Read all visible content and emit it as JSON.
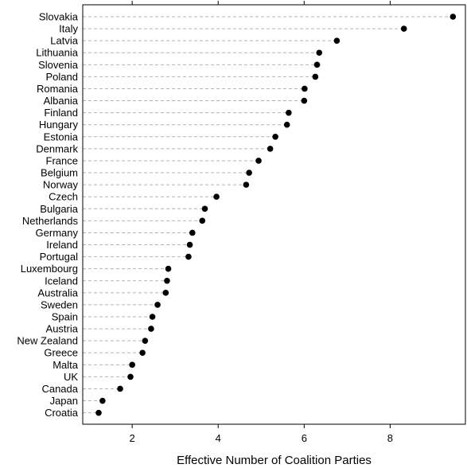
{
  "chart_data": {
    "type": "scatter",
    "subtype": "dot-plot",
    "title": "",
    "xlabel": "Effective Number of Coalition Parties",
    "ylabel": "",
    "xlim": [
      0.85,
      9.75
    ],
    "xticks": [
      2,
      4,
      6,
      8
    ],
    "grid": "dashed horizontal guide lines per category",
    "colors": {
      "point": "#000000",
      "guide": "#b3b3b3",
      "frame": "#000000"
    },
    "categories": [
      "Slovakia",
      "Italy",
      "Latvia",
      "Lithuania",
      "Slovenia",
      "Poland",
      "Romania",
      "Albania",
      "Finland",
      "Hungary",
      "Estonia",
      "Denmark",
      "France",
      "Belgium",
      "Norway",
      "Czech",
      "Bulgaria",
      "Netherlands",
      "Germany",
      "Ireland",
      "Portugal",
      "Luxembourg",
      "Iceland",
      "Australia",
      "Sweden",
      "Spain",
      "Austria",
      "New Zealand",
      "Greece",
      "Malta",
      "UK",
      "Canada",
      "Japan",
      "Croatia"
    ],
    "values": [
      9.46,
      8.32,
      6.76,
      6.35,
      6.3,
      6.26,
      6.01,
      6.0,
      5.64,
      5.6,
      5.33,
      5.21,
      4.94,
      4.72,
      4.65,
      3.96,
      3.69,
      3.63,
      3.4,
      3.34,
      3.31,
      2.84,
      2.81,
      2.78,
      2.59,
      2.47,
      2.44,
      2.3,
      2.24,
      2.0,
      1.96,
      1.72,
      1.31,
      1.22
    ]
  }
}
